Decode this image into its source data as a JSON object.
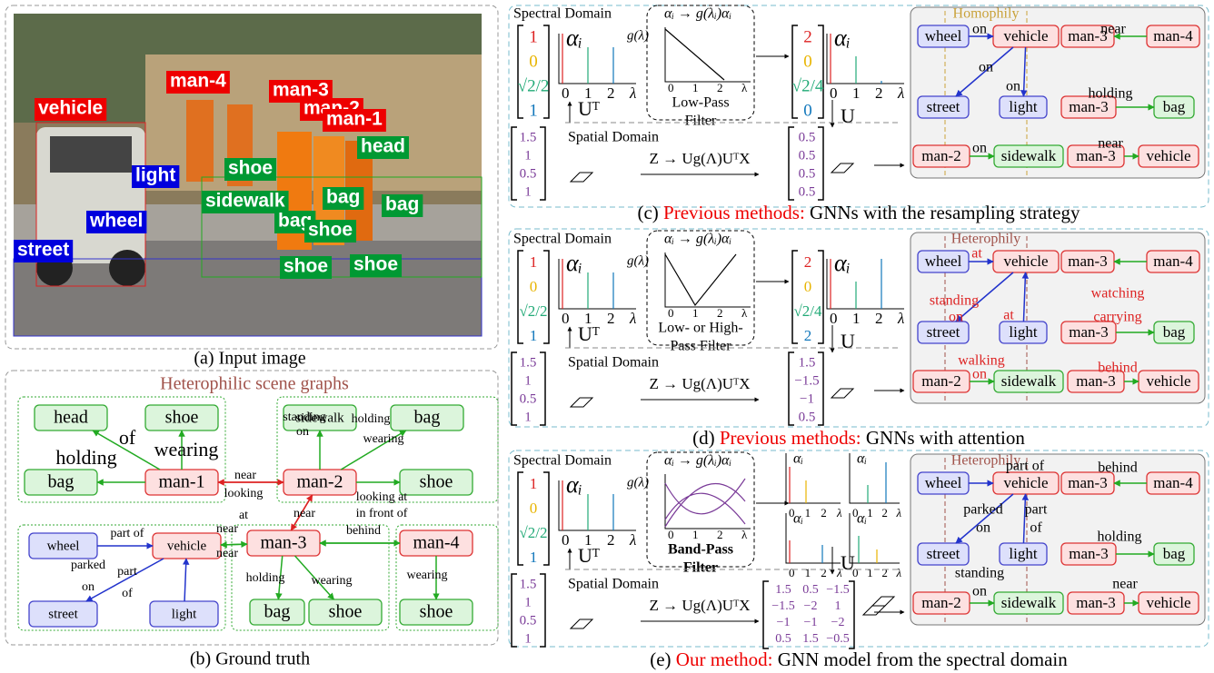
{
  "panel_a": {
    "labels": [
      "vehicle",
      "man-4",
      "man-3",
      "man-2",
      "man-1",
      "head",
      "light",
      "shoe",
      "sidewalk",
      "bag",
      "bag",
      "bag",
      "wheel",
      "shoe",
      "street",
      "shoe",
      "shoe"
    ],
    "caption": "(a) Input image"
  },
  "panel_b": {
    "title": "Heterophilic scene graphs",
    "nodes": [
      "head",
      "shoe",
      "bag",
      "man-1",
      "sidewalk",
      "bag",
      "man-2",
      "shoe",
      "wheel",
      "vehicle",
      "man-3",
      "man-4",
      "street",
      "light",
      "bag",
      "shoe",
      "shoe"
    ],
    "edge_labels": [
      "of",
      "holding",
      "wearing",
      "standing",
      "on",
      "holding",
      "wearing",
      "near",
      "looking",
      "at",
      "near",
      "looking at",
      "in front of",
      "behind",
      "part of",
      "parked",
      "on",
      "part",
      "of",
      "near",
      "near",
      "holding",
      "wearing",
      "wearing"
    ],
    "caption": "(b) Ground truth"
  },
  "panels": [
    {
      "spectral_label": "Spectral Domain",
      "alpha": "αᵢ",
      "g": "g(λ)",
      "mapping": "αᵢ → g(λᵢ)αᵢ",
      "filter": [
        "Low-Pass",
        "Filter"
      ],
      "axis_ticks": [
        "0",
        "1",
        "2",
        "λ"
      ],
      "input_vector": [
        "1",
        "0",
        "√2/2",
        "1"
      ],
      "output_vector": [
        "2",
        "0",
        "√2/4",
        "0"
      ],
      "transpose": "Uᵀ",
      "inverse": "U",
      "spatial_label": "Spatial Domain",
      "spatial_input": [
        "1.5",
        "1",
        "0.5",
        "1"
      ],
      "formula": "Z → Ug(Λ)UᵀX",
      "spatial_output": [
        "0.5",
        "0.5",
        "0.5",
        "0.5"
      ],
      "graph_label": "Homophily",
      "nodes": [
        "wheel",
        "vehicle",
        "man-3",
        "man-4",
        "street",
        "light",
        "man-3",
        "bag",
        "man-2",
        "sidewalk",
        "man-3",
        "vehicle"
      ],
      "edge_labels": [
        "on",
        "near",
        "on",
        "on",
        "holding",
        "on",
        "near"
      ],
      "caption": {
        "prefix": "(c) ",
        "highlight": "Previous methods:",
        "rest": " GNNs with the resampling strategy"
      }
    },
    {
      "spectral_label": "Spectral Domain",
      "alpha": "αᵢ",
      "g": "g(λ)",
      "mapping": "αᵢ → g(λᵢ)αᵢ",
      "filter": [
        "Low- or High-",
        "Pass Filter"
      ],
      "axis_ticks": [
        "0",
        "1",
        "2",
        "λ"
      ],
      "input_vector": [
        "1",
        "0",
        "√2/2",
        "1"
      ],
      "output_vector": [
        "2",
        "0",
        "√2/4",
        "2"
      ],
      "transpose": "Uᵀ",
      "inverse": "U",
      "spatial_label": "Spatial Domain",
      "spatial_input": [
        "1.5",
        "1",
        "0.5",
        "1"
      ],
      "formula": "Z → Ug(Λ)UᵀX",
      "spatial_output": [
        "1.5",
        "−1.5",
        "−1",
        "0.5"
      ],
      "graph_label": "Heterophily",
      "nodes": [
        "wheel",
        "vehicle",
        "man-3",
        "man-4",
        "street",
        "light",
        "man-3",
        "bag",
        "man-2",
        "sidewalk",
        "man-3",
        "vehicle"
      ],
      "edge_labels": [
        "at",
        "watching",
        "standing",
        "on",
        "at",
        "carrying",
        "walking",
        "on",
        "behind"
      ],
      "caption": {
        "prefix": "(d) ",
        "highlight": "Previous methods:",
        "rest": " GNNs with attention"
      }
    },
    {
      "spectral_label": "Spectral Domain",
      "alpha": "αᵢ",
      "g": "g(λ)",
      "mapping": "αᵢ → g(λᵢ)αᵢ",
      "filter": [
        "Band-Pass",
        "Filter"
      ],
      "axis_ticks": [
        "0",
        "1",
        "2",
        "λ"
      ],
      "input_vector": [
        "1",
        "0",
        "√2/2",
        "1"
      ],
      "transpose": "Uᵀ",
      "inverse": "U",
      "spatial_label": "Spatial Domain",
      "spatial_input": [
        "1.5",
        "1",
        "0.5",
        "1"
      ],
      "formula": "Z → Ug(Λ)UᵀX",
      "spatial_output": [
        [
          "1.5",
          "0.5",
          "−1.5"
        ],
        [
          "−1.5",
          "−2",
          "1"
        ],
        [
          "−1",
          "−1",
          "−2"
        ],
        [
          "0.5",
          "1.5",
          "−0.5"
        ]
      ],
      "graph_label": "Heterophily",
      "nodes": [
        "wheel",
        "vehicle",
        "man-3",
        "man-4",
        "street",
        "light",
        "man-3",
        "bag",
        "man-2",
        "sidewalk",
        "man-3",
        "vehicle"
      ],
      "edge_labels": [
        "part of",
        "behind",
        "parked",
        "on",
        "part",
        "of",
        "holding",
        "standing",
        "on",
        "near"
      ],
      "caption": {
        "prefix": "(e) ",
        "highlight": "Our method:",
        "rest": " GNN model from the spectral domain"
      }
    }
  ]
}
